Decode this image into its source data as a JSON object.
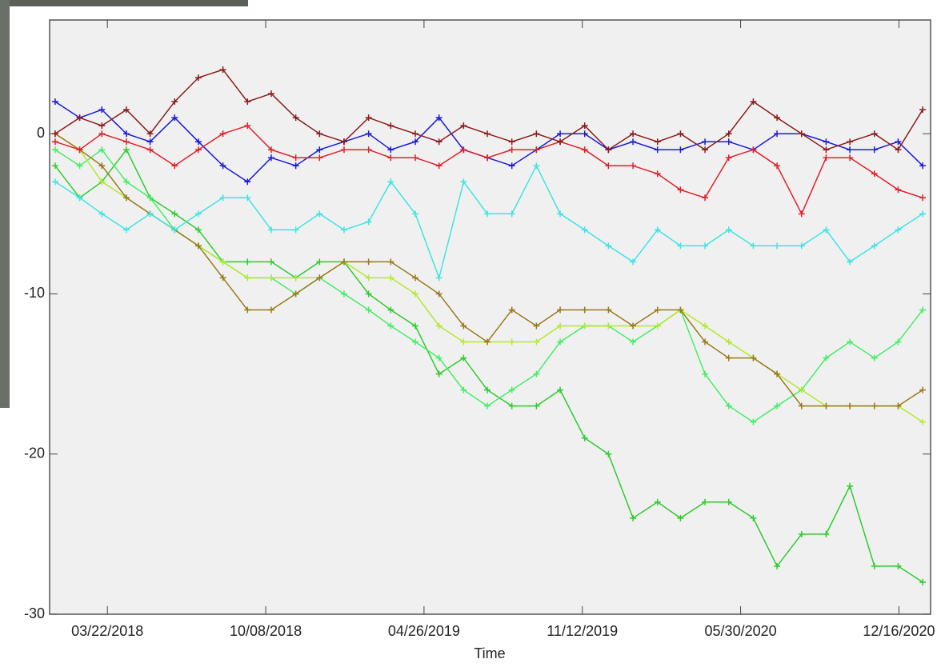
{
  "chart_data": {
    "type": "line",
    "x_label": "Time",
    "x": [
      "01/15/2018",
      "02/15/2018",
      "03/15/2018",
      "04/15/2018",
      "05/15/2018",
      "06/15/2018",
      "07/15/2018",
      "08/15/2018",
      "09/15/2018",
      "10/15/2018",
      "11/15/2018",
      "12/15/2018",
      "01/15/2019",
      "02/15/2019",
      "03/15/2019",
      "04/15/2019",
      "05/15/2019",
      "06/15/2019",
      "07/15/2019",
      "08/15/2019",
      "09/15/2019",
      "10/15/2019",
      "11/15/2019",
      "12/15/2019",
      "01/15/2020",
      "02/15/2020",
      "03/15/2020",
      "04/15/2020",
      "05/15/2020",
      "06/15/2020",
      "07/15/2020",
      "08/15/2020",
      "09/15/2020",
      "10/15/2020",
      "11/15/2020",
      "12/15/2020",
      "01/15/2021"
    ],
    "xlim": [
      "01/08/2018",
      "01/25/2021"
    ],
    "xticks": [
      "03/22/2018",
      "10/08/2018",
      "04/26/2019",
      "11/12/2019",
      "05/30/2020",
      "12/16/2020"
    ],
    "ylim": [
      -30,
      7.1
    ],
    "yticks": [
      0,
      -10,
      -20,
      -30
    ],
    "series": [
      {
        "color": "#2ecc2e",
        "values": [
          -2,
          -4,
          -3,
          -1,
          -4,
          -5,
          -6,
          -8,
          -8,
          -8,
          -9,
          -8,
          -8,
          -10,
          -11,
          -12,
          -15,
          -14,
          -16,
          -17,
          -17,
          -16,
          -19,
          -20,
          -24,
          -23,
          -24,
          -23,
          -23,
          -24,
          -27,
          -25,
          -25,
          -22,
          -27,
          -27,
          -28
        ]
      },
      {
        "color": "#44ee66",
        "values": [
          -1,
          -2,
          -1,
          -3,
          -4,
          -6,
          -7,
          -8,
          -9,
          -9,
          -10,
          -9,
          -10,
          -11,
          -12,
          -13,
          -14,
          -16,
          -17,
          -16,
          -15,
          -13,
          -12,
          -12,
          -13,
          -12,
          -11,
          -15,
          -17,
          -18,
          -17,
          -16,
          -14,
          -13,
          -14,
          -13,
          -11
        ]
      },
      {
        "color": "#b4e832",
        "values": [
          0,
          -1,
          -3,
          -4,
          -5,
          -6,
          -7,
          -8,
          -9,
          -9,
          -9,
          -9,
          -8,
          -9,
          -9,
          -10,
          -12,
          -13,
          -13,
          -13,
          -13,
          -12,
          -12,
          -12,
          -12,
          -12,
          -11,
          -12,
          -13,
          -14,
          -15,
          -16,
          -17,
          -17,
          -17,
          -17,
          -18
        ]
      },
      {
        "color": "#9a7a1c",
        "values": [
          0,
          -1,
          -2,
          -4,
          -5,
          -6,
          -7,
          -9,
          -11,
          -11,
          -10,
          -9,
          -8,
          -8,
          -8,
          -9,
          -10,
          -12,
          -13,
          -11,
          -12,
          -11,
          -11,
          -11,
          -12,
          -11,
          -11,
          -13,
          -14,
          -14,
          -15,
          -17,
          -17,
          -17,
          -17,
          -17,
          -16
        ]
      },
      {
        "color": "#3fe4e4",
        "values": [
          -3,
          -4,
          -5,
          -6,
          -5,
          -6,
          -5,
          -4,
          -4,
          -6,
          -6,
          -5,
          -6,
          -5.5,
          -3,
          -5,
          -9,
          -3,
          -5,
          -5,
          -2,
          -5,
          -6,
          -7,
          -8,
          -6,
          -7,
          -7,
          -6,
          -7,
          -7,
          -7,
          -6,
          -8,
          -7,
          -6,
          -5
        ]
      },
      {
        "color": "#1a1adc",
        "values": [
          2,
          1,
          1.5,
          0,
          -0.5,
          1,
          -0.5,
          -2,
          -3,
          -1.5,
          -2,
          -1,
          -0.5,
          0,
          -1,
          -0.5,
          1,
          -1,
          -1.5,
          -2,
          -1,
          0,
          0,
          -1,
          -0.5,
          -1,
          -1,
          -0.5,
          -0.5,
          -1,
          0,
          0,
          -0.5,
          -1,
          -1,
          -0.5,
          -2
        ]
      },
      {
        "color": "#e0202a",
        "values": [
          -0.5,
          -1,
          0,
          -0.5,
          -1,
          -2,
          -1,
          0,
          0.5,
          -1,
          -1.5,
          -1.5,
          -1,
          -1,
          -1.5,
          -1.5,
          -2,
          -1,
          -1.5,
          -1,
          -1,
          -0.5,
          -1,
          -2,
          -2,
          -2.5,
          -3.5,
          -4,
          -1.5,
          -1,
          -2,
          -5,
          -1.5,
          -1.5,
          -2.5,
          -3.5,
          -4
        ]
      },
      {
        "color": "#8a1c1c",
        "values": [
          0,
          1,
          0.5,
          1.5,
          0,
          2,
          3.5,
          4,
          2,
          2.5,
          1,
          0,
          -0.5,
          1,
          0.5,
          0,
          -0.5,
          0.5,
          0,
          -0.5,
          0,
          -0.5,
          0.5,
          -1,
          0,
          -0.5,
          0,
          -1,
          0,
          2,
          1,
          0,
          -1,
          -0.5,
          0,
          -1,
          1.5
        ]
      }
    ]
  }
}
